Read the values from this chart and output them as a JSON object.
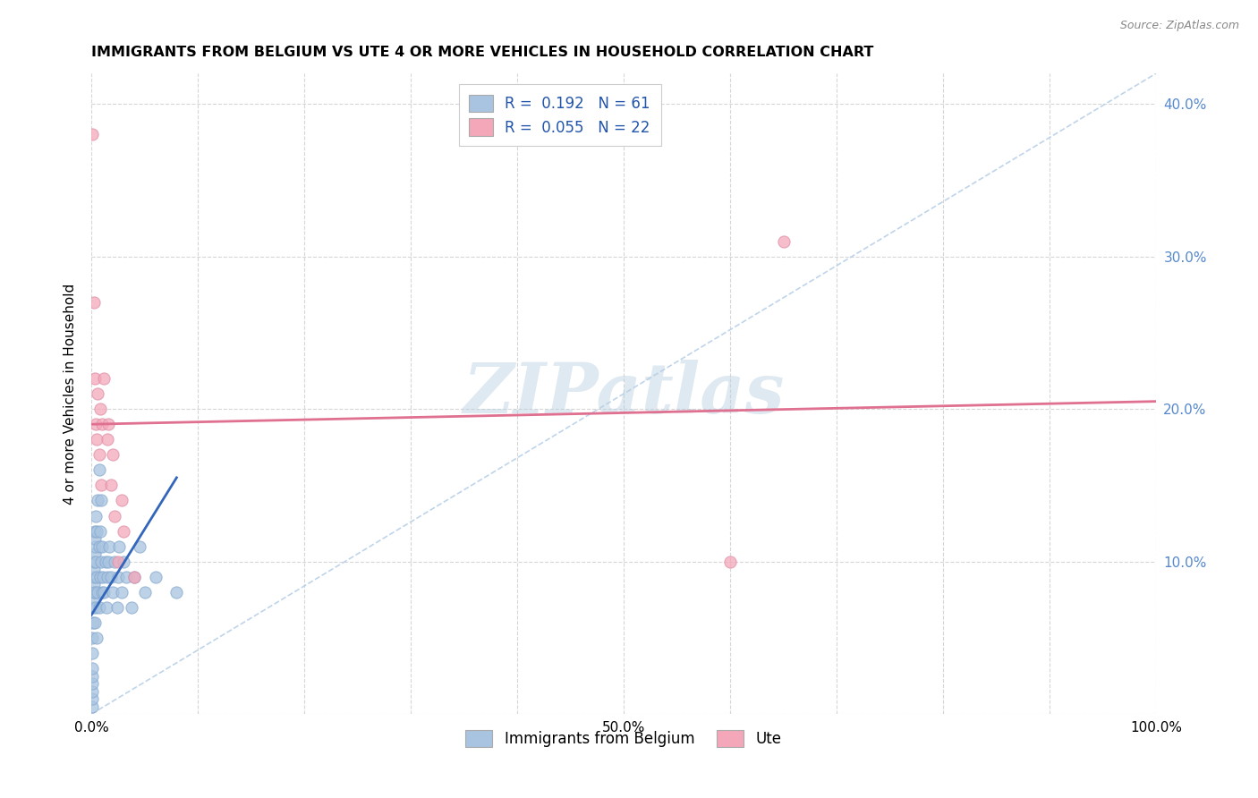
{
  "title": "IMMIGRANTS FROM BELGIUM VS UTE 4 OR MORE VEHICLES IN HOUSEHOLD CORRELATION CHART",
  "source": "Source: ZipAtlas.com",
  "ylabel": "4 or more Vehicles in Household",
  "xlim": [
    0,
    1.0
  ],
  "ylim": [
    0,
    0.42
  ],
  "xtick_positions": [
    0.0,
    0.1,
    0.2,
    0.3,
    0.4,
    0.5,
    0.6,
    0.7,
    0.8,
    0.9,
    1.0
  ],
  "xtick_labels": [
    "0.0%",
    "",
    "",
    "",
    "",
    "50.0%",
    "",
    "",
    "",
    "",
    "100.0%"
  ],
  "ytick_positions": [
    0.0,
    0.1,
    0.2,
    0.3,
    0.4
  ],
  "ytick_labels_right": [
    "",
    "10.0%",
    "20.0%",
    "30.0%",
    "40.0%"
  ],
  "legend_r_blue": "0.192",
  "legend_n_blue": "61",
  "legend_r_pink": "0.055",
  "legend_n_pink": "22",
  "blue_color": "#a8c4e0",
  "pink_color": "#f4a7b9",
  "trend_blue_color": "#3366bb",
  "trend_pink_color": "#e07090",
  "diagonal_color": "#b8d0e8",
  "watermark": "ZIPatlas",
  "blue_points_x": [
    0.0005,
    0.0005,
    0.0007,
    0.001,
    0.001,
    0.001,
    0.001,
    0.001,
    0.0012,
    0.0015,
    0.0015,
    0.002,
    0.002,
    0.002,
    0.002,
    0.0025,
    0.003,
    0.003,
    0.003,
    0.003,
    0.003,
    0.0035,
    0.004,
    0.004,
    0.004,
    0.005,
    0.005,
    0.005,
    0.006,
    0.006,
    0.007,
    0.007,
    0.007,
    0.008,
    0.008,
    0.009,
    0.009,
    0.01,
    0.01,
    0.011,
    0.012,
    0.013,
    0.014,
    0.015,
    0.016,
    0.017,
    0.018,
    0.02,
    0.022,
    0.024,
    0.025,
    0.026,
    0.028,
    0.03,
    0.033,
    0.038,
    0.04,
    0.045,
    0.05,
    0.06,
    0.08
  ],
  "blue_points_y": [
    0.005,
    0.01,
    0.015,
    0.02,
    0.025,
    0.03,
    0.04,
    0.05,
    0.06,
    0.07,
    0.075,
    0.08,
    0.085,
    0.09,
    0.095,
    0.1,
    0.105,
    0.11,
    0.115,
    0.12,
    0.06,
    0.08,
    0.13,
    0.07,
    0.1,
    0.09,
    0.12,
    0.05,
    0.14,
    0.08,
    0.07,
    0.11,
    0.16,
    0.09,
    0.12,
    0.1,
    0.14,
    0.08,
    0.11,
    0.09,
    0.08,
    0.1,
    0.07,
    0.09,
    0.1,
    0.11,
    0.09,
    0.08,
    0.1,
    0.07,
    0.09,
    0.11,
    0.08,
    0.1,
    0.09,
    0.07,
    0.09,
    0.11,
    0.08,
    0.09,
    0.08
  ],
  "pink_points_x": [
    0.001,
    0.002,
    0.003,
    0.004,
    0.005,
    0.006,
    0.007,
    0.008,
    0.009,
    0.01,
    0.012,
    0.015,
    0.016,
    0.018,
    0.02,
    0.022,
    0.025,
    0.028,
    0.03,
    0.04,
    0.6,
    0.65
  ],
  "pink_points_y": [
    0.38,
    0.27,
    0.22,
    0.19,
    0.18,
    0.21,
    0.17,
    0.2,
    0.15,
    0.19,
    0.22,
    0.18,
    0.19,
    0.15,
    0.17,
    0.13,
    0.1,
    0.14,
    0.12,
    0.09,
    0.1,
    0.31
  ],
  "trend_blue_x0": 0.0,
  "trend_blue_y0": 0.065,
  "trend_blue_x1": 0.08,
  "trend_blue_y1": 0.155,
  "trend_pink_x0": 0.0,
  "trend_pink_y0": 0.19,
  "trend_pink_x1": 1.0,
  "trend_pink_y1": 0.205
}
